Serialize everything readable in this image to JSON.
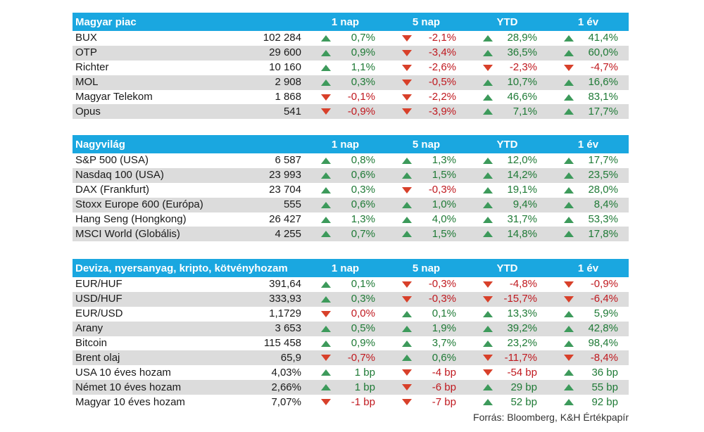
{
  "colors": {
    "header_bg": "#1aa7e0",
    "up": "#1f7a36",
    "down": "#c0191f",
    "row_stripe": "#dcdcdc"
  },
  "column_headers": [
    "1 nap",
    "5 nap",
    "YTD",
    "1 év"
  ],
  "sections": [
    {
      "title": "Magyar piac",
      "rows": [
        {
          "name": "BUX",
          "value": "102 284",
          "changes": [
            {
              "text": "0,7%",
              "dir": "up"
            },
            {
              "text": "-2,1%",
              "dir": "down"
            },
            {
              "text": "28,9%",
              "dir": "up"
            },
            {
              "text": "41,4%",
              "dir": "up"
            }
          ]
        },
        {
          "name": "OTP",
          "value": "29 600",
          "changes": [
            {
              "text": "0,9%",
              "dir": "up"
            },
            {
              "text": "-3,4%",
              "dir": "down"
            },
            {
              "text": "36,5%",
              "dir": "up"
            },
            {
              "text": "60,0%",
              "dir": "up"
            }
          ]
        },
        {
          "name": "Richter",
          "value": "10 160",
          "changes": [
            {
              "text": "1,1%",
              "dir": "up"
            },
            {
              "text": "-2,6%",
              "dir": "down"
            },
            {
              "text": "-2,3%",
              "dir": "down"
            },
            {
              "text": "-4,7%",
              "dir": "down"
            }
          ]
        },
        {
          "name": "MOL",
          "value": "2 908",
          "changes": [
            {
              "text": "0,3%",
              "dir": "up"
            },
            {
              "text": "-0,5%",
              "dir": "down"
            },
            {
              "text": "10,7%",
              "dir": "up"
            },
            {
              "text": "16,6%",
              "dir": "up"
            }
          ]
        },
        {
          "name": "Magyar Telekom",
          "value": "1 868",
          "changes": [
            {
              "text": "-0,1%",
              "dir": "down"
            },
            {
              "text": "-2,2%",
              "dir": "down"
            },
            {
              "text": "46,6%",
              "dir": "up"
            },
            {
              "text": "83,1%",
              "dir": "up"
            }
          ]
        },
        {
          "name": "Opus",
          "value": "541",
          "changes": [
            {
              "text": "-0,9%",
              "dir": "down"
            },
            {
              "text": "-3,9%",
              "dir": "down"
            },
            {
              "text": "7,1%",
              "dir": "up"
            },
            {
              "text": "17,7%",
              "dir": "up"
            }
          ]
        }
      ]
    },
    {
      "title": "Nagyvilág",
      "rows": [
        {
          "name": "S&P 500 (USA)",
          "value": "6 587",
          "changes": [
            {
              "text": "0,8%",
              "dir": "up"
            },
            {
              "text": "1,3%",
              "dir": "up"
            },
            {
              "text": "12,0%",
              "dir": "up"
            },
            {
              "text": "17,7%",
              "dir": "up"
            }
          ]
        },
        {
          "name": "Nasdaq 100 (USA)",
          "value": "23 993",
          "changes": [
            {
              "text": "0,6%",
              "dir": "up"
            },
            {
              "text": "1,5%",
              "dir": "up"
            },
            {
              "text": "14,2%",
              "dir": "up"
            },
            {
              "text": "23,5%",
              "dir": "up"
            }
          ]
        },
        {
          "name": "DAX (Frankfurt)",
          "value": "23 704",
          "changes": [
            {
              "text": "0,3%",
              "dir": "up"
            },
            {
              "text": "-0,3%",
              "dir": "down"
            },
            {
              "text": "19,1%",
              "dir": "up"
            },
            {
              "text": "28,0%",
              "dir": "up"
            }
          ]
        },
        {
          "name": "Stoxx Europe 600 (Európa)",
          "value": "555",
          "changes": [
            {
              "text": "0,6%",
              "dir": "up"
            },
            {
              "text": "1,0%",
              "dir": "up"
            },
            {
              "text": "9,4%",
              "dir": "up"
            },
            {
              "text": "8,4%",
              "dir": "up"
            }
          ]
        },
        {
          "name": "Hang Seng (Hongkong)",
          "value": "26 427",
          "changes": [
            {
              "text": "1,3%",
              "dir": "up"
            },
            {
              "text": "4,0%",
              "dir": "up"
            },
            {
              "text": "31,7%",
              "dir": "up"
            },
            {
              "text": "53,3%",
              "dir": "up"
            }
          ]
        },
        {
          "name": "MSCI World (Globális)",
          "value": "4 255",
          "changes": [
            {
              "text": "0,7%",
              "dir": "up"
            },
            {
              "text": "1,5%",
              "dir": "up"
            },
            {
              "text": "14,8%",
              "dir": "up"
            },
            {
              "text": "17,8%",
              "dir": "up"
            }
          ]
        }
      ]
    },
    {
      "title": "Deviza, nyersanyag, kripto, kötvényhozam",
      "rows": [
        {
          "name": "EUR/HUF",
          "value": "391,64",
          "changes": [
            {
              "text": "0,1%",
              "dir": "up"
            },
            {
              "text": "-0,3%",
              "dir": "down"
            },
            {
              "text": "-4,8%",
              "dir": "down"
            },
            {
              "text": "-0,9%",
              "dir": "down"
            }
          ]
        },
        {
          "name": "USD/HUF",
          "value": "333,93",
          "changes": [
            {
              "text": "0,3%",
              "dir": "up"
            },
            {
              "text": "-0,3%",
              "dir": "down"
            },
            {
              "text": "-15,7%",
              "dir": "down"
            },
            {
              "text": "-6,4%",
              "dir": "down"
            }
          ]
        },
        {
          "name": "EUR/USD",
          "value": "1,1729",
          "changes": [
            {
              "text": "0,0%",
              "dir": "down"
            },
            {
              "text": "0,1%",
              "dir": "up"
            },
            {
              "text": "13,3%",
              "dir": "up"
            },
            {
              "text": "5,9%",
              "dir": "up"
            }
          ]
        },
        {
          "name": "Arany",
          "value": "3 653",
          "changes": [
            {
              "text": "0,5%",
              "dir": "up"
            },
            {
              "text": "1,9%",
              "dir": "up"
            },
            {
              "text": "39,2%",
              "dir": "up"
            },
            {
              "text": "42,8%",
              "dir": "up"
            }
          ]
        },
        {
          "name": "Bitcoin",
          "value": "115 458",
          "changes": [
            {
              "text": "0,9%",
              "dir": "up"
            },
            {
              "text": "3,7%",
              "dir": "up"
            },
            {
              "text": "23,2%",
              "dir": "up"
            },
            {
              "text": "98,4%",
              "dir": "up"
            }
          ]
        },
        {
          "name": "Brent olaj",
          "value": "65,9",
          "changes": [
            {
              "text": "-0,7%",
              "dir": "down"
            },
            {
              "text": "0,6%",
              "dir": "up"
            },
            {
              "text": "-11,7%",
              "dir": "down"
            },
            {
              "text": "-8,4%",
              "dir": "down"
            }
          ]
        },
        {
          "name": "USA 10 éves hozam",
          "value": "4,03%",
          "changes": [
            {
              "text": "1 bp",
              "dir": "up"
            },
            {
              "text": "-4 bp",
              "dir": "down"
            },
            {
              "text": "-54 bp",
              "dir": "down"
            },
            {
              "text": "36 bp",
              "dir": "up"
            }
          ]
        },
        {
          "name": "Német 10 éves hozam",
          "value": "2,66%",
          "changes": [
            {
              "text": "1 bp",
              "dir": "up"
            },
            {
              "text": "-6 bp",
              "dir": "down"
            },
            {
              "text": "29 bp",
              "dir": "up"
            },
            {
              "text": "55 bp",
              "dir": "up"
            }
          ]
        },
        {
          "name": "Magyar 10 éves hozam",
          "value": "7,07%",
          "changes": [
            {
              "text": "-1 bp",
              "dir": "down"
            },
            {
              "text": "-7 bp",
              "dir": "down"
            },
            {
              "text": "52 bp",
              "dir": "up"
            },
            {
              "text": "92 bp",
              "dir": "up"
            }
          ]
        }
      ]
    }
  ],
  "source": "Forrás: Bloomberg, K&H Értékpapír"
}
